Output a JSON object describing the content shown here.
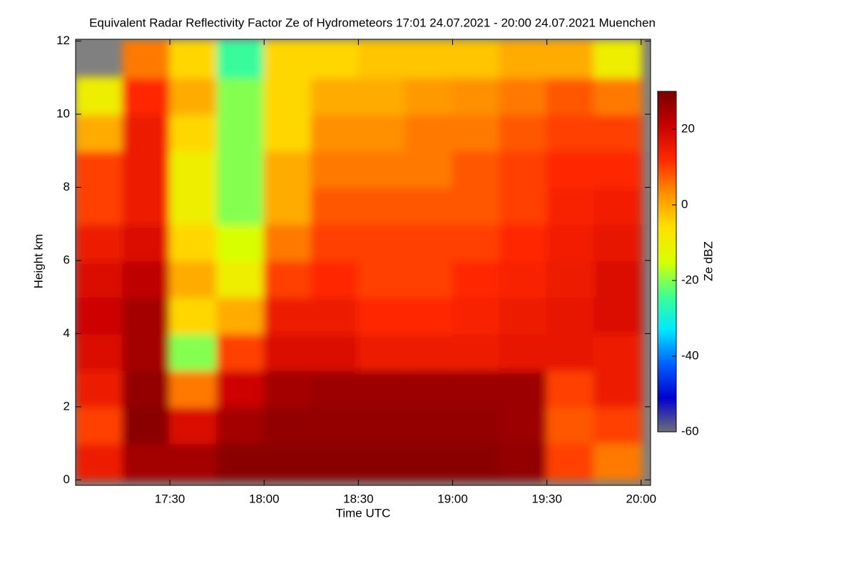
{
  "chart_data": {
    "type": "heatmap",
    "title": "Equivalent Radar Reflectivity Factor Ze of Hydrometeors    17:01 24.07.2021 - 20:00 24.07.2021 Muenchen",
    "x_label": "Time UTC",
    "y_label": "Height km",
    "colorbar_label": "Ze dBZ",
    "x_bins": [
      1020,
      1035,
      1050,
      1065,
      1080,
      1095,
      1110,
      1125,
      1140,
      1155,
      1170,
      1185,
      1200
    ],
    "y_bins": [
      0,
      1,
      2,
      3,
      4,
      5,
      6,
      7,
      8,
      9,
      10,
      11,
      12
    ],
    "z": [
      [
        15,
        25,
        25,
        28,
        28,
        28,
        28,
        28,
        28,
        27,
        10,
        5
      ],
      [
        10,
        28,
        18,
        25,
        27,
        27,
        27,
        27,
        27,
        26,
        8,
        10
      ],
      [
        15,
        27,
        5,
        20,
        25,
        26,
        26,
        26,
        26,
        26,
        10,
        15
      ],
      [
        18,
        25,
        -20,
        10,
        18,
        18,
        15,
        15,
        15,
        16,
        16,
        15
      ],
      [
        20,
        25,
        -5,
        0,
        15,
        15,
        12,
        12,
        13,
        15,
        16,
        18
      ],
      [
        18,
        22,
        0,
        -10,
        10,
        12,
        10,
        10,
        12,
        13,
        15,
        18
      ],
      [
        15,
        18,
        -5,
        -15,
        5,
        10,
        10,
        10,
        10,
        12,
        14,
        16
      ],
      [
        10,
        15,
        -10,
        -20,
        0,
        8,
        8,
        8,
        8,
        10,
        13,
        14
      ],
      [
        10,
        15,
        -10,
        -20,
        0,
        5,
        5,
        5,
        8,
        10,
        12,
        12
      ],
      [
        0,
        15,
        -5,
        -20,
        -5,
        3,
        3,
        5,
        5,
        8,
        10,
        10
      ],
      [
        -10,
        12,
        0,
        -20,
        -5,
        0,
        0,
        2,
        3,
        5,
        8,
        5
      ],
      [
        null,
        5,
        -5,
        -25,
        -5,
        -5,
        -3,
        -3,
        -3,
        0,
        0,
        -10
      ]
    ],
    "xlim": [
      1020,
      1203
    ],
    "ylim": [
      -0.15,
      12.05
    ],
    "xticks": [
      {
        "value": 1050,
        "label": "17:30"
      },
      {
        "value": 1080,
        "label": "18:00"
      },
      {
        "value": 1110,
        "label": "18:30"
      },
      {
        "value": 1140,
        "label": "19:00"
      },
      {
        "value": 1170,
        "label": "19:30"
      },
      {
        "value": 1200,
        "label": "20:00"
      }
    ],
    "yticks": [
      0,
      2,
      4,
      6,
      8,
      10,
      12
    ],
    "clim": [
      -60,
      30
    ],
    "cticks": [
      -60,
      -40,
      -20,
      0,
      20
    ],
    "colorscale": [
      "#6e6e78",
      "#0000d0",
      "#0060ff",
      "#00e8ff",
      "#40ff90",
      "#d8ff00",
      "#ffe000",
      "#ff9000",
      "#ff2800",
      "#c80000",
      "#780000"
    ],
    "null_color": "#808080"
  }
}
